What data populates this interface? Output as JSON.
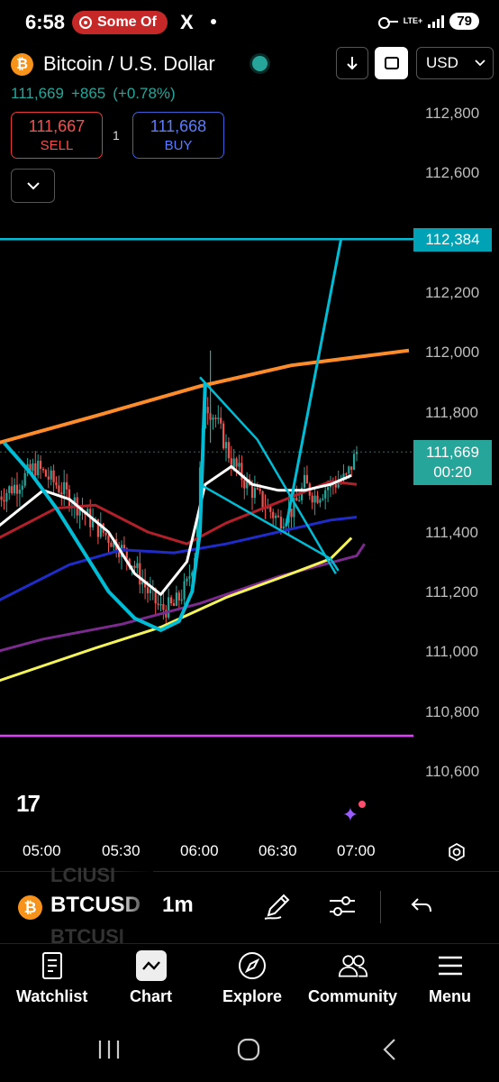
{
  "status_bar": {
    "time": "6:58",
    "notification": "Some Of",
    "x_icon": "X",
    "network": "LTE+",
    "battery": "79"
  },
  "header": {
    "symbol_icon": "₿",
    "title": "Bitcoin / U.S. Dollar",
    "currency": "USD",
    "last_price": "111,669",
    "change": "+865",
    "change_pct": "(+0.78%)"
  },
  "trade": {
    "sell_price": "111,667",
    "sell_label": "SELL",
    "buy_price": "111,668",
    "buy_label": "BUY",
    "quantity": "1"
  },
  "chart": {
    "price_axis": [
      "112,800",
      "112,600",
      "112,200",
      "112,000",
      "111,800",
      "111,400",
      "111,200",
      "111,000",
      "110,800",
      "110,600"
    ],
    "alert_price": "112,384",
    "current_price": "111,669",
    "countdown": "00:20",
    "time_axis": [
      "05:00",
      "05:30",
      "06:00",
      "06:30",
      "07:00"
    ],
    "logo": "17",
    "colors": {
      "up": "#26a69a",
      "down": "#ef5350",
      "alert_line": "#00bcd4",
      "orange_ma": "#ff8c2a",
      "yellow_ma": "#f4f45a",
      "blue_ma": "#1f2cc9",
      "purple_ma": "#7b2a8e",
      "red_ma": "#b3202a",
      "white_ma": "#ffffff",
      "magenta_line": "#e040fb"
    }
  },
  "symbol_bar": {
    "symbol": "BTCUSD",
    "ghost_above": "LCIUSI",
    "ghost_below": "BTCUSI",
    "interval": "1m"
  },
  "nav": {
    "watchlist": "Watchlist",
    "chart": "Chart",
    "explore": "Explore",
    "community": "Community",
    "menu": "Menu"
  }
}
